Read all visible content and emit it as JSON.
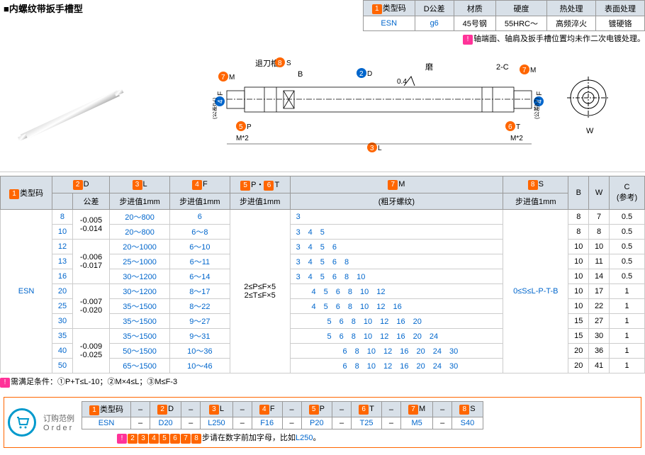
{
  "title": "■内螺纹带扳手槽型",
  "specHeaders": [
    "类型码",
    "D公差",
    "材质",
    "硬度",
    "热处理",
    "表面处理"
  ],
  "specValues": [
    "ESN",
    "g6",
    "45号钢",
    "55HRC～",
    "高频淬火",
    "镀硬铬"
  ],
  "specNote": "轴端面、轴肩及扳手槽位置均未作二次电镀处理。",
  "diagramLabels": {
    "retreat": "退刀槽",
    "grind": "磨",
    "roughness": "0.4",
    "M": "M",
    "S": "S",
    "D": "D",
    "F": "F",
    "P": "P",
    "T": "T",
    "L": "L",
    "B": "B",
    "W": "W",
    "C": "2-C",
    "thread": "M*2",
    "tol": "(公差h7)"
  },
  "mainHeaders": {
    "type": "类型码",
    "D": "D",
    "tol": "公差",
    "L": "L",
    "Lstep": "步进值1mm",
    "F": "F",
    "Fstep": "步进值1mm",
    "PT": "P・T",
    "PTstep": "步进值1mm",
    "M": "M",
    "Mthread": "(粗牙螺纹)",
    "S": "S",
    "Sstep": "步进值1mm",
    "B": "B",
    "W": "W",
    "Cref": "C\n(参考)"
  },
  "typeCode": "ESN",
  "ptRange": "2≤P≤F×5\n2≤T≤F×5",
  "sRange": "0≤S≤L-P-T-B",
  "rows": [
    {
      "d": "8",
      "tol": "-0.005\n-0.014",
      "l": "20～800",
      "f": "6",
      "m": "3",
      "b": "8",
      "w": "7",
      "c": "0.5",
      "tolspan": 2
    },
    {
      "d": "10",
      "l": "20～800",
      "f": "6～8",
      "m": "3　4　5",
      "b": "8",
      "w": "8",
      "c": "0.5"
    },
    {
      "d": "12",
      "tol": "-0.006\n-0.017",
      "l": "20～1000",
      "f": "6～10",
      "m": "3　4　5　6",
      "b": "10",
      "w": "10",
      "c": "0.5",
      "tolspan": 3
    },
    {
      "d": "13",
      "l": "25～1000",
      "f": "6～11",
      "m": "3　4　5　6　8",
      "b": "10",
      "w": "11",
      "c": "0.5"
    },
    {
      "d": "16",
      "l": "30～1200",
      "f": "6～14",
      "m": "3　4　5　6　8　10",
      "b": "10",
      "w": "14",
      "c": "0.5"
    },
    {
      "d": "20",
      "tol": "-0.007\n-0.020",
      "l": "30～1200",
      "f": "8～17",
      "m": "　　4　5　6　8　10　12",
      "b": "10",
      "w": "17",
      "c": "1",
      "tolspan": 3
    },
    {
      "d": "25",
      "l": "35～1500",
      "f": "8～22",
      "m": "　　4　5　6　8　10　12　16",
      "b": "10",
      "w": "22",
      "c": "1"
    },
    {
      "d": "30",
      "l": "35～1500",
      "f": "9～27",
      "m": "　　　　5　6　8　10　12　16　20",
      "b": "15",
      "w": "27",
      "c": "1"
    },
    {
      "d": "35",
      "tol": "-0.009\n-0.025",
      "l": "35～1500",
      "f": "9～31",
      "m": "　　　　5　6　8　10　12　16　20　24",
      "b": "15",
      "w": "30",
      "c": "1",
      "tolspan": 3
    },
    {
      "d": "40",
      "l": "50～1500",
      "f": "10～36",
      "m": "　　　　　　6　8　10　12　16　20　24　30",
      "b": "20",
      "w": "36",
      "c": "1"
    },
    {
      "d": "50",
      "l": "65～1500",
      "f": "10～46",
      "m": "　　　　　　6　8　10　12　16　20　24　30",
      "b": "20",
      "w": "41",
      "c": "1"
    }
  ],
  "conditions": "需满足条件：①P+T≤L-10；②M×4≤L；③M≤F-3",
  "orderTitle": "订购范例\nOrder",
  "orderHeaders": [
    "类型码",
    "D",
    "L",
    "F",
    "P",
    "T",
    "M",
    "S"
  ],
  "orderValues": [
    "ESN",
    "D20",
    "L250",
    "F16",
    "P20",
    "T25",
    "M5",
    "S40"
  ],
  "orderBadges": [
    "1",
    "2",
    "3",
    "4",
    "5",
    "6",
    "7",
    "8"
  ],
  "orderNote1": "②③④⑤⑥⑦⑧",
  "orderNote2": "步请在数字前加字母，比如",
  "orderNote3": "L250",
  "colors": {
    "orange": "#ff6600",
    "blue": "#0066cc",
    "pink": "#ff3399",
    "header": "#d8e0e8"
  }
}
